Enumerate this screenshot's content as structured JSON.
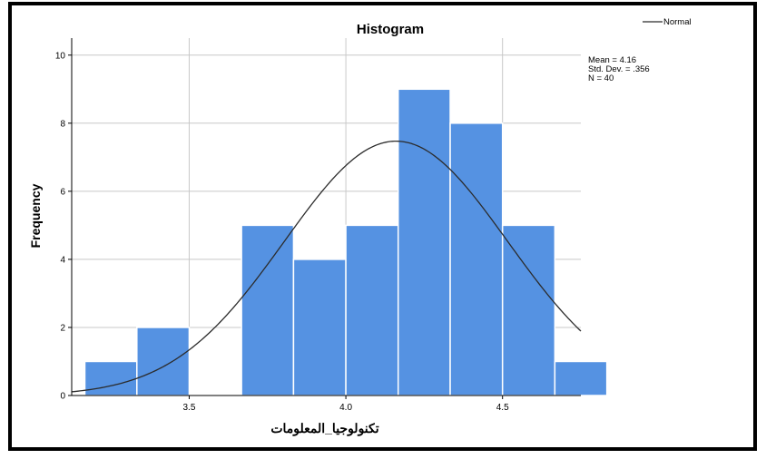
{
  "chart_data": {
    "type": "bar",
    "title": "Histogram",
    "xlabel": "تكنولوجيا_المعلومات",
    "ylabel": "Frequency",
    "ylim": [
      0,
      10
    ],
    "xlim": [
      3.125,
      4.75
    ],
    "bin_width": 0.1667,
    "bins": [
      {
        "start": 3.167,
        "end": 3.333,
        "count": 1
      },
      {
        "start": 3.333,
        "end": 3.5,
        "count": 2
      },
      {
        "start": 3.5,
        "end": 3.667,
        "count": 0
      },
      {
        "start": 3.667,
        "end": 3.833,
        "count": 5
      },
      {
        "start": 3.833,
        "end": 4.0,
        "count": 4
      },
      {
        "start": 4.0,
        "end": 4.167,
        "count": 5
      },
      {
        "start": 4.167,
        "end": 4.333,
        "count": 9
      },
      {
        "start": 4.333,
        "end": 4.5,
        "count": 8
      },
      {
        "start": 4.5,
        "end": 4.667,
        "count": 5
      },
      {
        "start": 4.667,
        "end": 4.833,
        "count": 1
      }
    ],
    "x_ticks": [
      "3.5",
      "4.0",
      "4.5"
    ],
    "x_tick_values": [
      3.5,
      4.0,
      4.5
    ],
    "y_ticks": [
      "0",
      "2",
      "4",
      "6",
      "8",
      "10"
    ],
    "y_tick_values": [
      0,
      2,
      4,
      6,
      8,
      10
    ],
    "normal_curve": {
      "mean": 4.16,
      "sd": 0.356,
      "n": 40
    },
    "stats_text": [
      "Mean = 4.16",
      "Std. Dev. = .356",
      "N = 40"
    ],
    "legend": [
      {
        "name": "Normal",
        "style": "line"
      }
    ],
    "legend_position": "top-right",
    "grid": true,
    "bar_color": "#5592e2",
    "curve_color": "#2b2b2b"
  }
}
